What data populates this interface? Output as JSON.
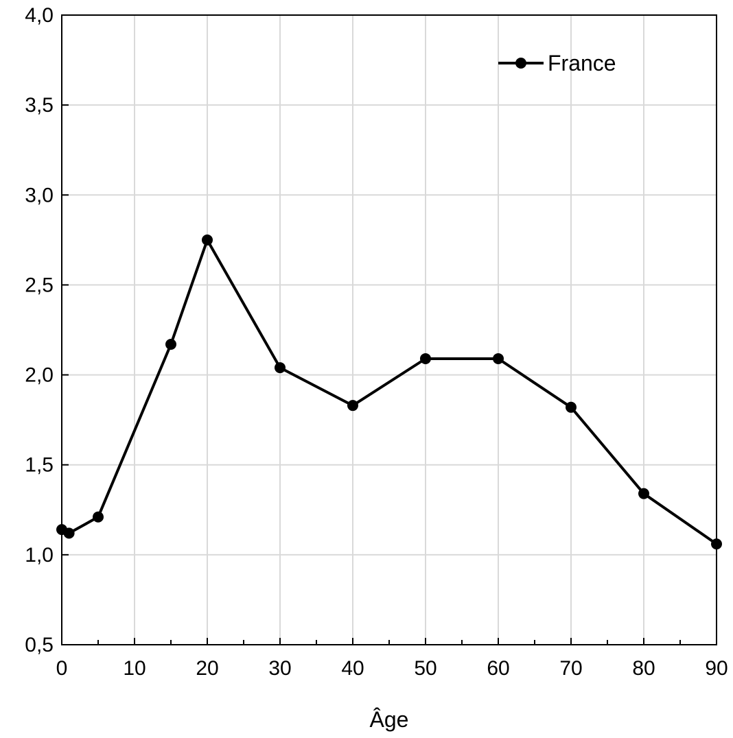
{
  "chart_data": {
    "type": "line",
    "title": "",
    "xlabel": "Âge",
    "ylabel": "",
    "xlim": [
      0,
      90
    ],
    "ylim": [
      0.5,
      4.0
    ],
    "x_ticks": [
      0,
      10,
      20,
      30,
      40,
      50,
      60,
      70,
      80,
      90
    ],
    "x_tick_labels": [
      "0",
      "10",
      "20",
      "30",
      "40",
      "50",
      "60",
      "70",
      "80",
      "90"
    ],
    "x_minor_ticks": [
      5,
      15,
      25,
      35,
      45,
      55,
      65,
      75,
      85
    ],
    "y_ticks": [
      0.5,
      1.0,
      1.5,
      2.0,
      2.5,
      3.0,
      3.5,
      4.0
    ],
    "y_tick_labels": [
      "0,5",
      "1,0",
      "1,5",
      "2,0",
      "2,5",
      "3,0",
      "3,5",
      "4,0"
    ],
    "grid": true,
    "legend_position": "top-right",
    "series": [
      {
        "name": "France",
        "color": "#000000",
        "marker": "circle",
        "x": [
          0,
          1,
          5,
          15,
          20,
          30,
          40,
          50,
          60,
          70,
          80,
          90
        ],
        "y": [
          1.14,
          1.12,
          1.21,
          2.17,
          2.75,
          2.04,
          1.83,
          2.09,
          2.09,
          1.82,
          1.34,
          1.06
        ]
      }
    ]
  }
}
